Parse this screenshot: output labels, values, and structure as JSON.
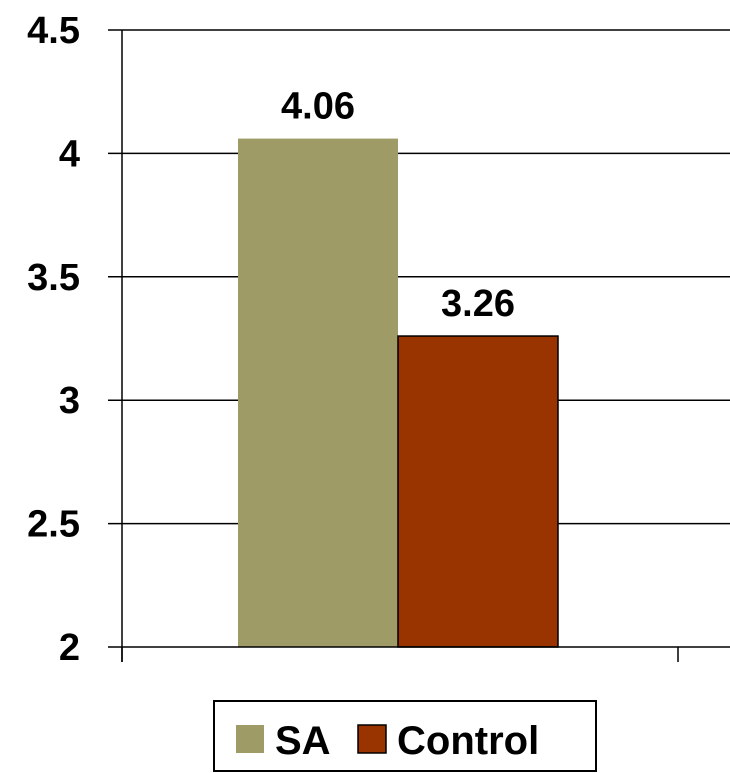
{
  "chart_data": {
    "type": "bar",
    "categories": [
      ""
    ],
    "series": [
      {
        "name": "SA",
        "values": [
          4.06
        ],
        "color": "#9E9B67"
      },
      {
        "name": "Control",
        "values": [
          3.26
        ],
        "color": "#993300"
      }
    ],
    "data_labels": [
      "4.06",
      "3.26"
    ],
    "yticks": [
      "2",
      "2.5",
      "3",
      "3.5",
      "4",
      "4.5"
    ],
    "ytick_values": [
      2,
      2.5,
      3,
      3.5,
      4,
      4.5
    ],
    "ylim": [
      2,
      4.5
    ],
    "grid": true,
    "legend_position": "bottom",
    "title": "",
    "xlabel": "",
    "ylabel": ""
  }
}
